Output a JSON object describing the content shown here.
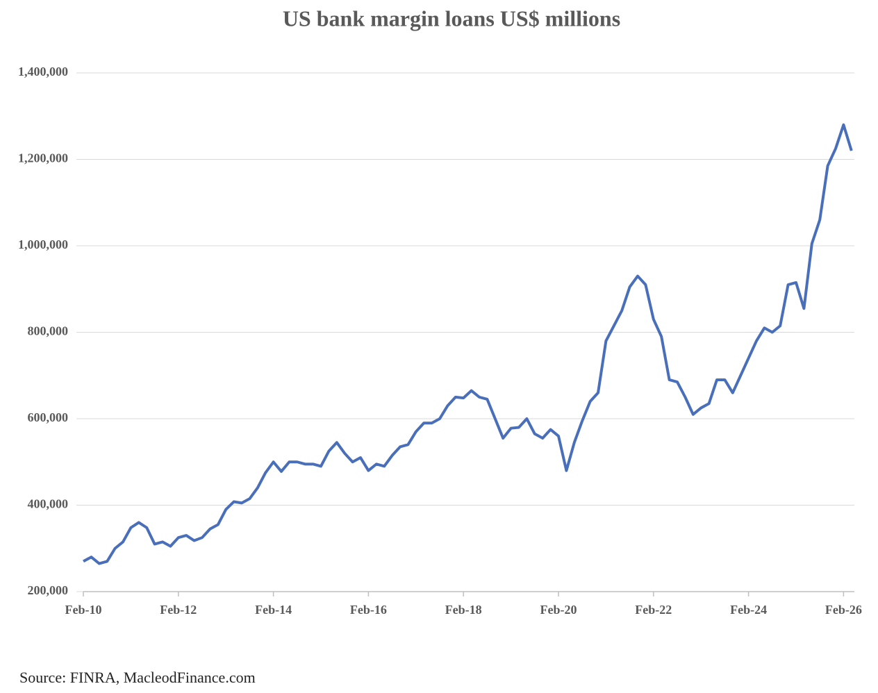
{
  "chart_data": {
    "type": "line",
    "title": "US bank margin loans US$ millions",
    "source": "Source: FINRA, MacleodFinance.com",
    "categories": [
      "Feb-10",
      null,
      null,
      null,
      null,
      null,
      null,
      null,
      null,
      null,
      null,
      null,
      "Feb-12",
      null,
      null,
      null,
      null,
      null,
      null,
      null,
      null,
      null,
      null,
      null,
      "Feb-14",
      null,
      null,
      null,
      null,
      null,
      null,
      null,
      null,
      null,
      null,
      null,
      "Feb-16",
      null,
      null,
      null,
      null,
      null,
      null,
      null,
      null,
      null,
      null,
      null,
      "Feb-18",
      null,
      null,
      null,
      null,
      null,
      null,
      null,
      null,
      null,
      null,
      null,
      "Feb-20",
      null,
      null,
      null,
      null,
      null,
      null,
      null,
      null,
      null,
      null,
      null,
      "Feb-22",
      null,
      null,
      null,
      null,
      null,
      null,
      null,
      null,
      null,
      null,
      null,
      "Feb-24",
      null,
      null,
      null,
      null,
      null,
      null,
      null,
      null,
      null,
      null,
      null,
      "Feb-26",
      null
    ],
    "series": [
      {
        "name": "US bank margin loans",
        "color": "#4a6fba",
        "values": [
          270000,
          280000,
          265000,
          270000,
          300000,
          315000,
          348000,
          360000,
          348000,
          310000,
          315000,
          305000,
          325000,
          330000,
          318000,
          325000,
          345000,
          355000,
          390000,
          408000,
          405000,
          415000,
          440000,
          475000,
          500000,
          478000,
          500000,
          500000,
          495000,
          495000,
          490000,
          525000,
          545000,
          520000,
          500000,
          510000,
          480000,
          495000,
          490000,
          515000,
          535000,
          540000,
          570000,
          590000,
          590000,
          600000,
          630000,
          650000,
          648000,
          665000,
          650000,
          645000,
          600000,
          555000,
          578000,
          580000,
          600000,
          565000,
          555000,
          575000,
          560000,
          480000,
          545000,
          595000,
          640000,
          660000,
          780000,
          815000,
          850000,
          905000,
          930000,
          910000,
          830000,
          790000,
          690000,
          685000,
          650000,
          610000,
          625000,
          635000,
          690000,
          690000,
          660000,
          700000,
          740000,
          780000,
          810000,
          800000,
          815000,
          910000,
          915000,
          855000,
          1005000,
          1060000,
          1185000,
          1225000,
          1280000,
          1220000
        ]
      }
    ],
    "ylim": [
      200000,
      1400000
    ],
    "yticks": [
      {
        "value": 200000,
        "label": "200,000"
      },
      {
        "value": 400000,
        "label": "400,000"
      },
      {
        "value": 600000,
        "label": "600,000"
      },
      {
        "value": 800000,
        "label": "800,000"
      },
      {
        "value": 1000000,
        "label": "1,000,000"
      },
      {
        "value": 1200000,
        "label": "1,200,000"
      },
      {
        "value": 1400000,
        "label": "1,400,000"
      }
    ],
    "grid": true
  }
}
